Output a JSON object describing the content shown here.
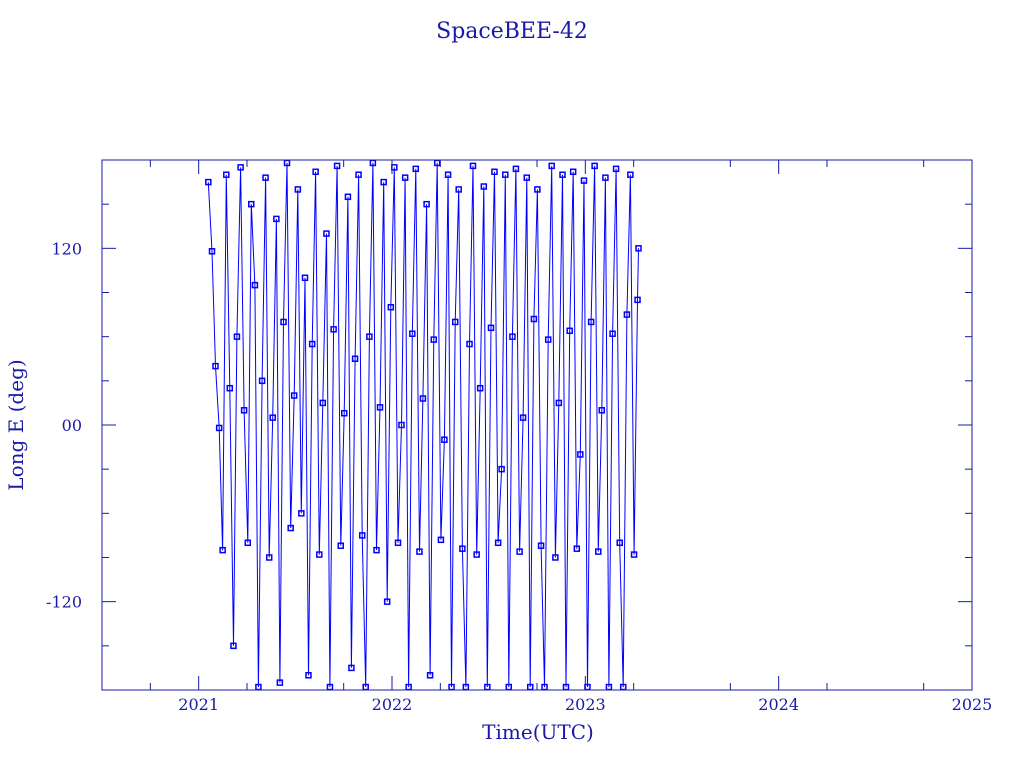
{
  "chart_data": {
    "type": "line",
    "title": "SpaceBEE-42",
    "xlabel": "Time(UTC)",
    "ylabel": "Long E (deg)",
    "xlim": [
      2020.5,
      2025.0
    ],
    "ylim": [
      -180,
      180
    ],
    "x_ticks": [
      2021,
      2022,
      2023,
      2024,
      2025
    ],
    "x_tick_labels": [
      "2021",
      "2022",
      "2023",
      "2024",
      "2025"
    ],
    "y_ticks": [
      120,
      0,
      -120
    ],
    "y_tick_labels": [
      "120",
      "00",
      "-120"
    ],
    "grid": false,
    "markers": "square",
    "colors": {
      "series": "#0000ff",
      "axes": "#1a1aa6"
    },
    "points": [
      [
        2021.05,
        165
      ],
      [
        2021.069,
        118
      ],
      [
        2021.087,
        40
      ],
      [
        2021.106,
        -2
      ],
      [
        2021.124,
        -85
      ],
      [
        2021.143,
        170
      ],
      [
        2021.161,
        25
      ],
      [
        2021.18,
        -150
      ],
      [
        2021.198,
        60
      ],
      [
        2021.217,
        175
      ],
      [
        2021.235,
        10
      ],
      [
        2021.254,
        -80
      ],
      [
        2021.272,
        150
      ],
      [
        2021.291,
        95
      ],
      [
        2021.309,
        -178
      ],
      [
        2021.328,
        30
      ],
      [
        2021.346,
        168
      ],
      [
        2021.365,
        -90
      ],
      [
        2021.383,
        5
      ],
      [
        2021.402,
        140
      ],
      [
        2021.42,
        -175
      ],
      [
        2021.439,
        70
      ],
      [
        2021.457,
        178
      ],
      [
        2021.476,
        -70
      ],
      [
        2021.494,
        20
      ],
      [
        2021.513,
        160
      ],
      [
        2021.531,
        -60
      ],
      [
        2021.55,
        100
      ],
      [
        2021.568,
        -170
      ],
      [
        2021.587,
        55
      ],
      [
        2021.605,
        172
      ],
      [
        2021.624,
        -88
      ],
      [
        2021.642,
        15
      ],
      [
        2021.661,
        130
      ],
      [
        2021.679,
        -178
      ],
      [
        2021.698,
        65
      ],
      [
        2021.716,
        176
      ],
      [
        2021.735,
        -82
      ],
      [
        2021.753,
        8
      ],
      [
        2021.772,
        155
      ],
      [
        2021.79,
        -165
      ],
      [
        2021.809,
        45
      ],
      [
        2021.827,
        170
      ],
      [
        2021.846,
        -75
      ],
      [
        2021.864,
        -178
      ],
      [
        2021.883,
        60
      ],
      [
        2021.901,
        178
      ],
      [
        2021.92,
        -85
      ],
      [
        2021.938,
        12
      ],
      [
        2021.957,
        165
      ],
      [
        2021.975,
        -120
      ],
      [
        2021.994,
        80
      ],
      [
        2022.012,
        175
      ],
      [
        2022.031,
        -80
      ],
      [
        2022.049,
        0
      ],
      [
        2022.068,
        168
      ],
      [
        2022.086,
        -178
      ],
      [
        2022.105,
        62
      ],
      [
        2022.123,
        174
      ],
      [
        2022.142,
        -86
      ],
      [
        2022.16,
        18
      ],
      [
        2022.179,
        150
      ],
      [
        2022.197,
        -170
      ],
      [
        2022.216,
        58
      ],
      [
        2022.234,
        178
      ],
      [
        2022.253,
        -78
      ],
      [
        2022.271,
        -10
      ],
      [
        2022.29,
        170
      ],
      [
        2022.308,
        -178
      ],
      [
        2022.327,
        70
      ],
      [
        2022.345,
        160
      ],
      [
        2022.364,
        -84
      ],
      [
        2022.382,
        -178
      ],
      [
        2022.401,
        55
      ],
      [
        2022.419,
        176
      ],
      [
        2022.438,
        -88
      ],
      [
        2022.456,
        25
      ],
      [
        2022.475,
        162
      ],
      [
        2022.493,
        -178
      ],
      [
        2022.512,
        66
      ],
      [
        2022.53,
        172
      ],
      [
        2022.549,
        -80
      ],
      [
        2022.567,
        -30
      ],
      [
        2022.586,
        170
      ],
      [
        2022.604,
        -178
      ],
      [
        2022.623,
        60
      ],
      [
        2022.641,
        174
      ],
      [
        2022.66,
        -86
      ],
      [
        2022.678,
        5
      ],
      [
        2022.697,
        168
      ],
      [
        2022.715,
        -178
      ],
      [
        2022.734,
        72
      ],
      [
        2022.752,
        160
      ],
      [
        2022.771,
        -82
      ],
      [
        2022.789,
        -178
      ],
      [
        2022.808,
        58
      ],
      [
        2022.826,
        176
      ],
      [
        2022.845,
        -90
      ],
      [
        2022.863,
        15
      ],
      [
        2022.882,
        170
      ],
      [
        2022.9,
        -178
      ],
      [
        2022.919,
        64
      ],
      [
        2022.937,
        172
      ],
      [
        2022.956,
        -84
      ],
      [
        2022.974,
        -20
      ],
      [
        2022.993,
        166
      ],
      [
        2023.011,
        -178
      ],
      [
        2023.03,
        70
      ],
      [
        2023.048,
        176
      ],
      [
        2023.067,
        -86
      ],
      [
        2023.085,
        10
      ],
      [
        2023.104,
        168
      ],
      [
        2023.122,
        -178
      ],
      [
        2023.141,
        62
      ],
      [
        2023.159,
        174
      ],
      [
        2023.178,
        -80
      ],
      [
        2023.196,
        -178
      ],
      [
        2023.215,
        75
      ],
      [
        2023.233,
        170
      ],
      [
        2023.252,
        -88
      ],
      [
        2023.27,
        85
      ],
      [
        2023.275,
        120
      ]
    ]
  }
}
